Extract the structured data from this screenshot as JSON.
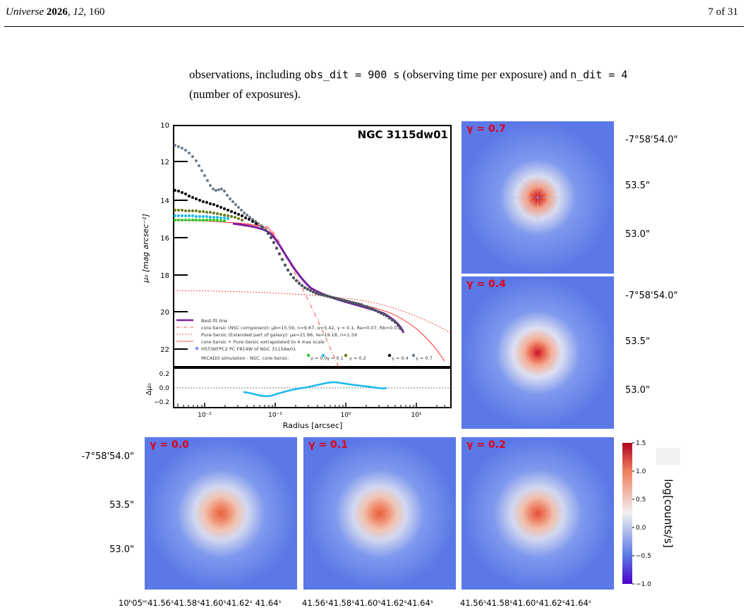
{
  "header": {
    "journal_name": "Universe",
    "year": "2026",
    "volume": "12",
    "article_no": "160",
    "page_label": "7 of 31"
  },
  "body": {
    "text_1": "observations, including ",
    "code_1": "obs_dit = 900 s",
    "text_2": " (observing time per exposure) and ",
    "code_2": "n_dit = 4",
    "line2": "(number of exposures)."
  },
  "figure": {
    "profile": {
      "title": "NGC 3115dw01",
      "ylabel_main": "μ₀ [mag arcsec⁻²]",
      "ylabel_resid": "Δμ₀",
      "xlabel": "Radius [arcsec]",
      "y_ticks": [
        "10",
        "12",
        "14",
        "16",
        "18",
        "20",
        "22"
      ],
      "resid_ticks": [
        "0.2",
        "0.0",
        "−0.2"
      ],
      "x_ticks": [
        "10⁻²",
        "10⁻¹",
        "10⁰",
        "10¹"
      ],
      "legend": {
        "best_fit": "Best-fit line",
        "core_sersic": "core-Sersic (NSC component): μb=15.59, n=9.67, α=5.42, γ = 0.1, Re=0.07, Rb=0.03",
        "pure_sersic": "Pure-Sersic (Extended part of galaxy): μe=21.96, re=19.18, n=1.59",
        "combined": "core-Sersic + Pure-Sersic extrapolated to 4 mas scale",
        "hst": "HST/WFPC2 PC F814W of NGC 3115dw01",
        "micado": "MICADO simulation - NSC, core-Sersic:",
        "gammas": [
          "γ = 0.0",
          "γ = 0.1",
          "γ = 0.2",
          "γ = 0.4",
          "γ = 0.7"
        ]
      }
    },
    "maps": [
      {
        "gamma": "γ = 0.7"
      },
      {
        "gamma": "γ = 0.4"
      },
      {
        "gamma": "γ = 0.0"
      },
      {
        "gamma": "γ = 0.1"
      },
      {
        "gamma": "γ = 0.2"
      }
    ],
    "dec_labels": [
      "-7°58'54.0\"",
      "53.5\"",
      "53.0\""
    ],
    "ra_labels_first": "10ʰ05ᵐ41.56ˢ41.58ˢ41.60ˢ41.62ˢ 41.64ˢ",
    "ra_labels_other": "41.56ˢ41.58ˢ41.60ˢ41.62ˢ41.64ˢ",
    "colorbar": {
      "label": "log[counts/s]",
      "ticks": [
        "1.5",
        "1.0",
        "0.5",
        "0.0",
        "−0.5",
        "−1.0"
      ]
    },
    "colors": {
      "core_peak": "#c8102e",
      "background_blue": "#5a78e6",
      "label_red": "#e0001a",
      "best_fit": "#7b1fa2",
      "hst_points": "#6b7b8c",
      "resid": "#1ab8f0"
    }
  }
}
